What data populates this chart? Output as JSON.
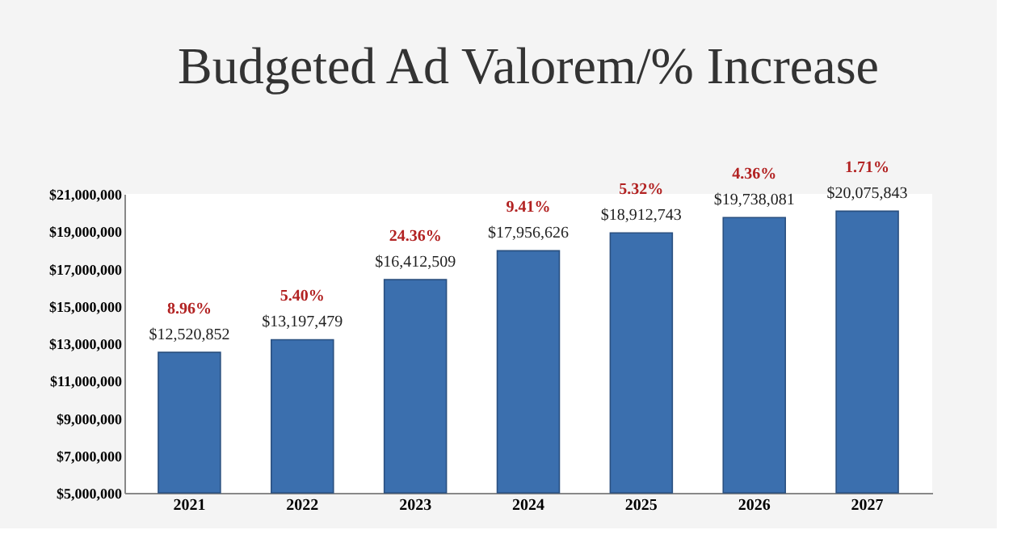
{
  "chart_data": {
    "type": "bar",
    "title": "Budgeted Ad Valorem/% Increase",
    "categories": [
      "2021",
      "2022",
      "2023",
      "2024",
      "2025",
      "2026",
      "2027"
    ],
    "values": [
      12520852,
      13197479,
      16412509,
      17956626,
      18912743,
      19738081,
      20075843
    ],
    "value_labels": [
      "$12,520,852",
      "$13,197,479",
      "$16,412,509",
      "$17,956,626",
      "$18,912,743",
      "$19,738,081",
      "$20,075,843"
    ],
    "color": "#3b6fae",
    "ylim": [
      5000000,
      21000000
    ],
    "yticks": [
      {
        "value": 5000000,
        "label": "$5,000,000"
      },
      {
        "value": 7000000,
        "label": "$7,000,000"
      },
      {
        "value": 9000000,
        "label": "$9,000,000"
      },
      {
        "value": 11000000,
        "label": "$11,000,000"
      },
      {
        "value": 13000000,
        "label": "$13,000,000"
      },
      {
        "value": 15000000,
        "label": "$15,000,000"
      },
      {
        "value": 17000000,
        "label": "$17,000,000"
      },
      {
        "value": 19000000,
        "label": "$19,000,000"
      },
      {
        "value": 21000000,
        "label": "$21,000,000"
      }
    ],
    "grid": false,
    "annotations": [
      {
        "text": "8.96%",
        "x": "2021",
        "y": 12520852
      },
      {
        "text": "5.40%",
        "x": "2022",
        "y": 13197479
      },
      {
        "text": "24.36%",
        "x": "2023",
        "y": 16412509
      },
      {
        "text": "9.41%",
        "x": "2024",
        "y": 17956626
      },
      {
        "text": "5.32%",
        "x": "2025",
        "y": 18912743
      },
      {
        "text": "4.36%",
        "x": "2026",
        "y": 19738081
      },
      {
        "text": "1.71%",
        "x": "2027",
        "y": 20075843
      }
    ]
  }
}
